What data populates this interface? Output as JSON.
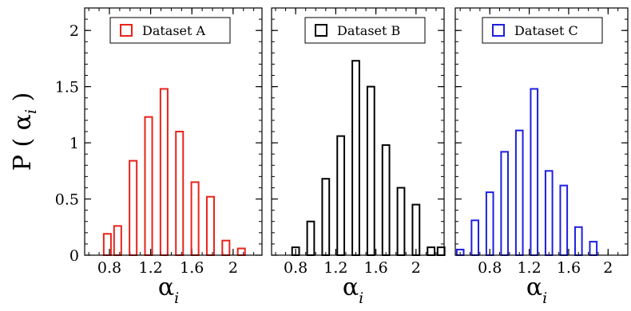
{
  "ylabel": {
    "main": "P ( α",
    "sub": "i",
    "close": " )"
  },
  "chart_data": [
    {
      "type": "bar",
      "legend": "Dataset A",
      "color": "#e8231b",
      "xlabel": {
        "main": "α",
        "sub": "i"
      },
      "xlim": [
        0.56,
        2.28
      ],
      "ylim": [
        0,
        2.2
      ],
      "xticks": [
        "0.8",
        "1.2",
        "1.6",
        "2"
      ],
      "yticks": [
        "0",
        "0.5",
        "1",
        "1.5",
        "2"
      ],
      "bin_width": 0.07,
      "x": [
        0.78,
        0.88,
        1.03,
        1.18,
        1.33,
        1.48,
        1.63,
        1.78,
        1.93,
        2.08,
        2.23
      ],
      "values": [
        0.19,
        0.26,
        0.84,
        1.23,
        1.48,
        1.1,
        0.65,
        0.52,
        0.13,
        0.06,
        0.0
      ]
    },
    {
      "type": "bar",
      "legend": "Dataset B",
      "color": "#000000",
      "xlabel": {
        "main": "α",
        "sub": "i"
      },
      "xlim": [
        0.56,
        2.28
      ],
      "ylim": [
        0,
        2.2
      ],
      "xticks": [
        "0.8",
        "1.2",
        "1.6",
        "2"
      ],
      "yticks": [
        "0",
        "0.5",
        "1",
        "1.5",
        "2"
      ],
      "bin_width": 0.07,
      "x": [
        0.8,
        0.95,
        1.1,
        1.25,
        1.4,
        1.55,
        1.7,
        1.85,
        2.0,
        2.15,
        2.25
      ],
      "values": [
        0.07,
        0.3,
        0.68,
        1.06,
        1.73,
        1.5,
        0.98,
        0.6,
        0.45,
        0.07,
        0.07
      ]
    },
    {
      "type": "bar",
      "legend": "Dataset C",
      "color": "#1f1fe0",
      "xlabel": {
        "main": "α",
        "sub": "i"
      },
      "xlim": [
        0.45,
        2.2
      ],
      "ylim": [
        0,
        2.2
      ],
      "xticks": [
        "0.8",
        "1.2",
        "1.6",
        "2"
      ],
      "yticks": [
        "0",
        "0.5",
        "1",
        "1.5",
        "2"
      ],
      "bin_width": 0.07,
      "x": [
        0.5,
        0.65,
        0.8,
        0.95,
        1.1,
        1.25,
        1.4,
        1.55,
        1.7,
        1.85,
        2.0
      ],
      "values": [
        0.05,
        0.31,
        0.56,
        0.92,
        1.11,
        1.48,
        0.75,
        0.62,
        0.25,
        0.12,
        0.0
      ]
    }
  ]
}
